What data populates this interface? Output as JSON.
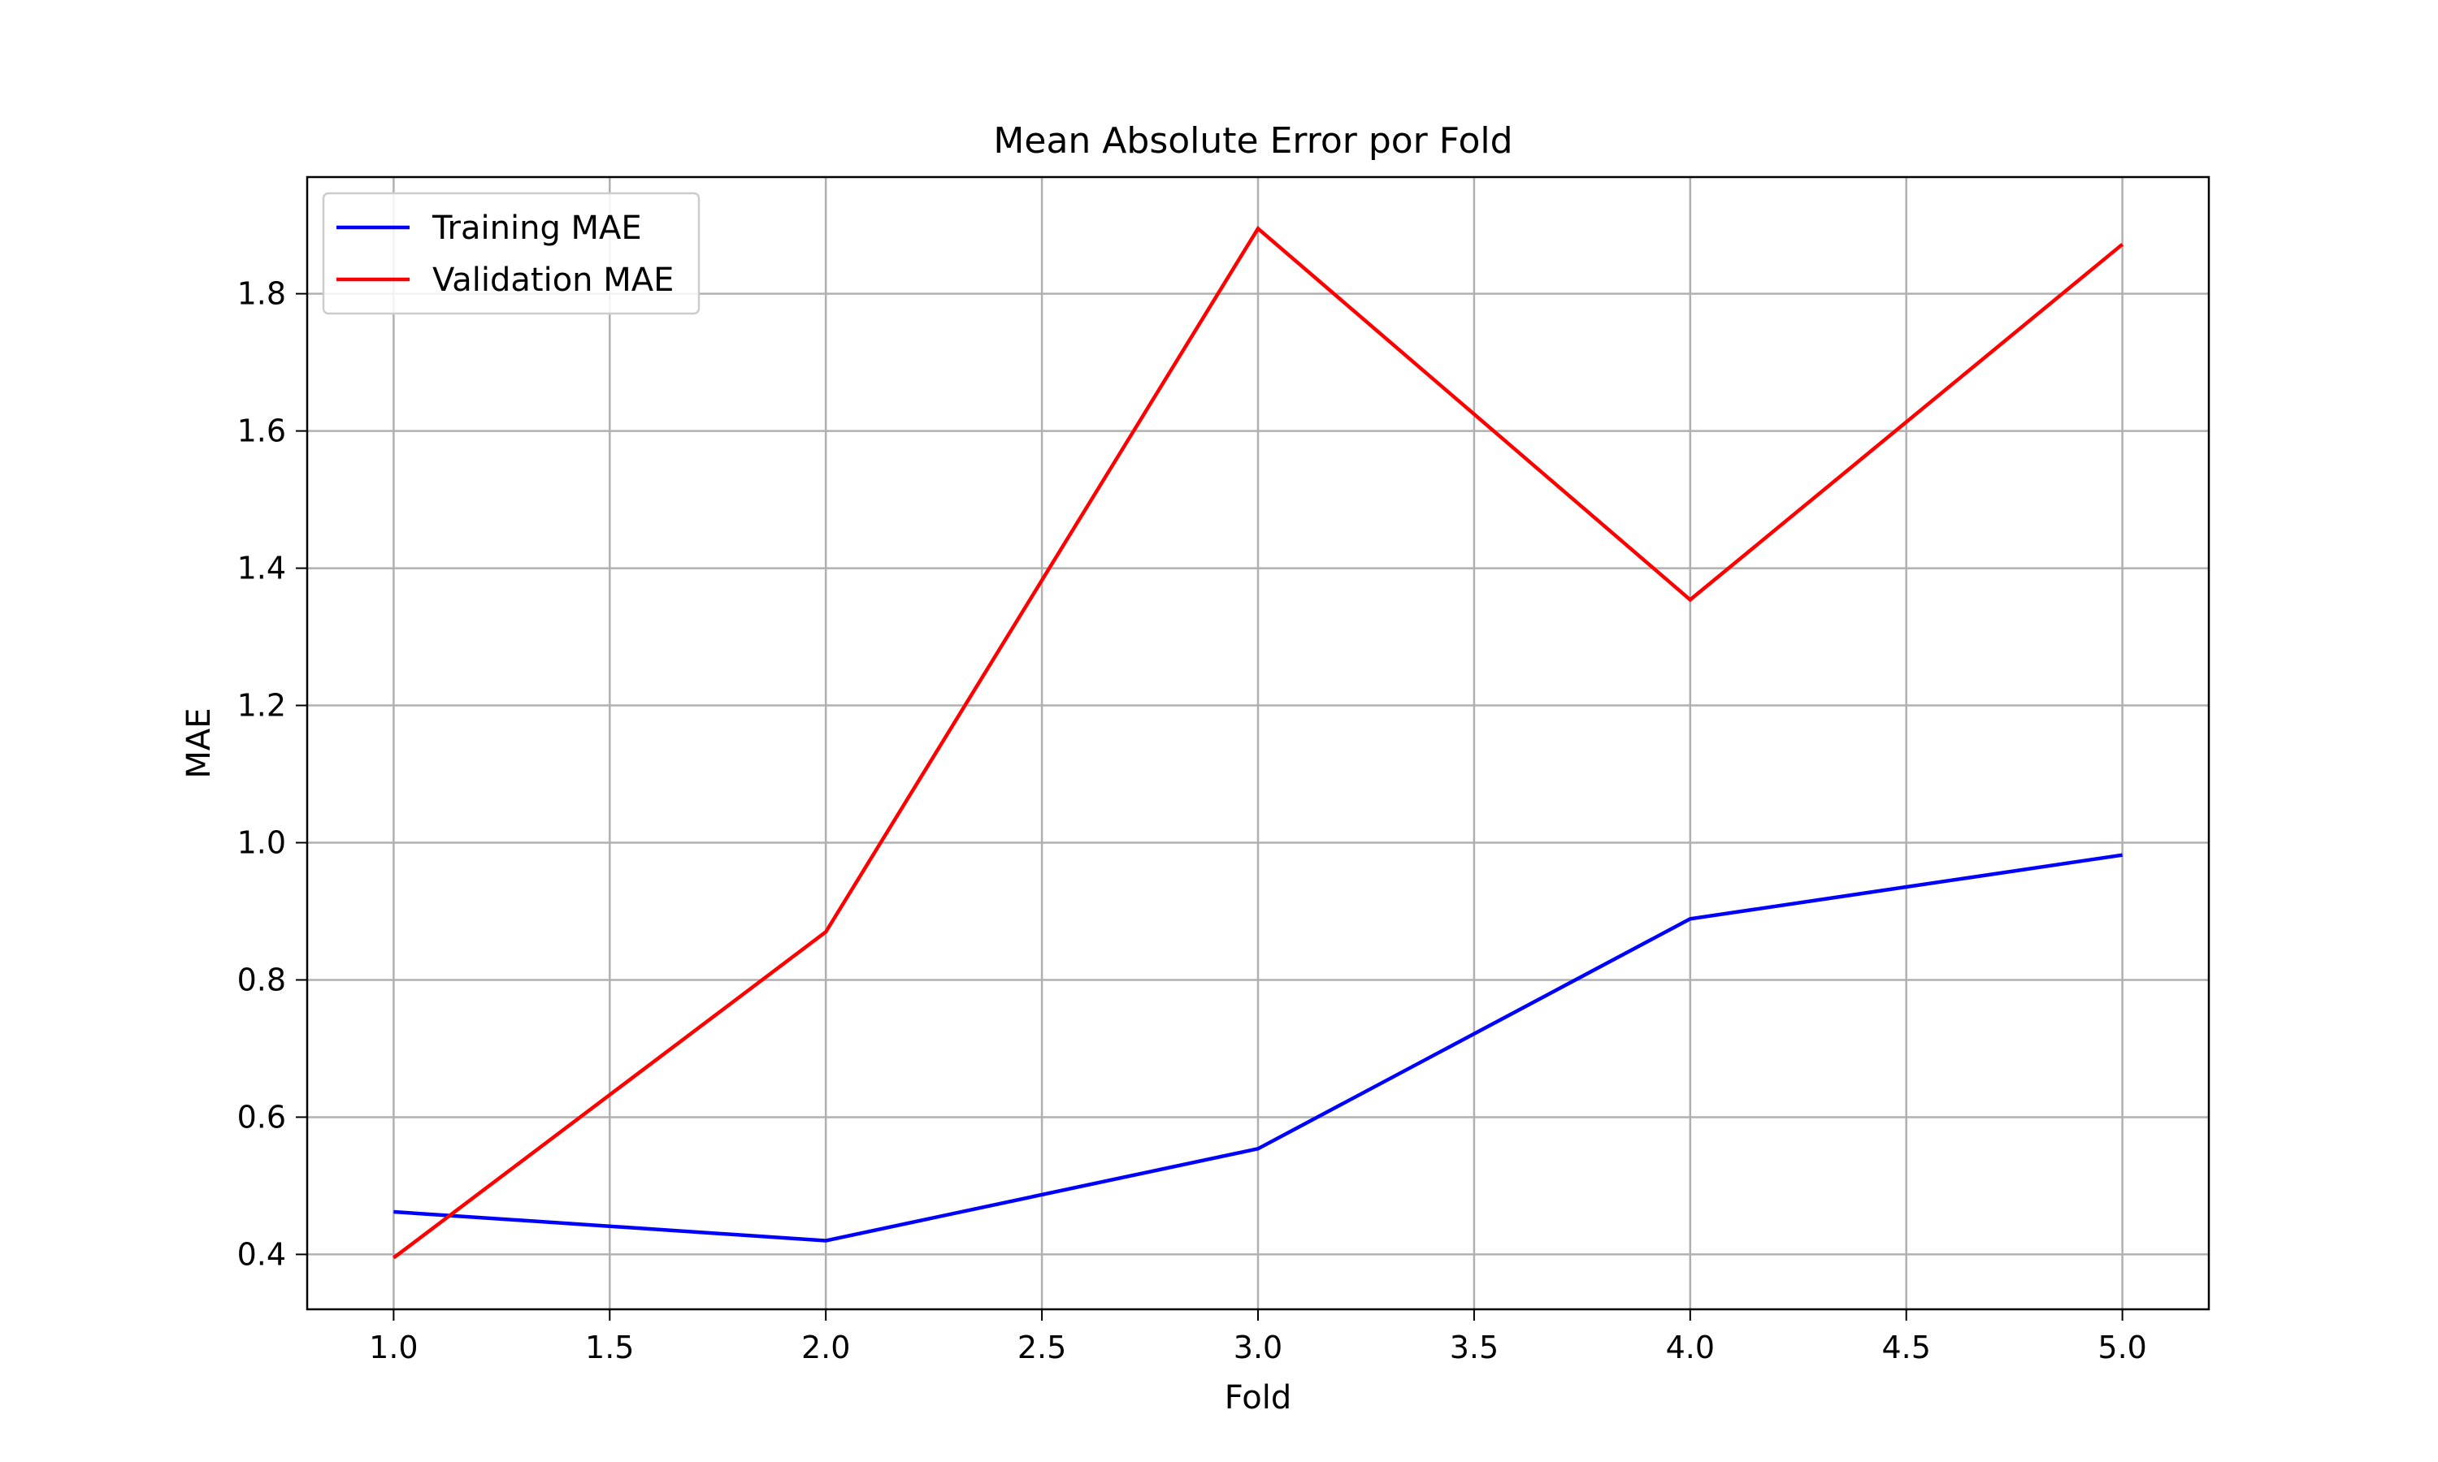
{
  "chart_data": {
    "type": "line",
    "title": "Mean Absolute Error por Fold",
    "xlabel": "Fold",
    "ylabel": "MAE",
    "xlim": [
      0.8,
      5.2
    ],
    "ylim": [
      0.32,
      1.97
    ],
    "xticks": [
      "1.0",
      "1.5",
      "2.0",
      "2.5",
      "3.0",
      "3.5",
      "4.0",
      "4.5",
      "5.0"
    ],
    "yticks": [
      "0.4",
      "0.6",
      "0.8",
      "1.0",
      "1.2",
      "1.4",
      "1.6",
      "1.8"
    ],
    "grid": true,
    "legend_position": "top-left",
    "x": [
      1,
      2,
      3,
      4,
      5
    ],
    "series": [
      {
        "name": "Training MAE",
        "color": "#0000ff",
        "values": [
          0.462,
          0.42,
          0.554,
          0.889,
          0.982
        ]
      },
      {
        "name": "Validation MAE",
        "color": "#ff0000",
        "values": [
          0.395,
          0.87,
          1.895,
          1.354,
          1.872
        ]
      }
    ]
  }
}
